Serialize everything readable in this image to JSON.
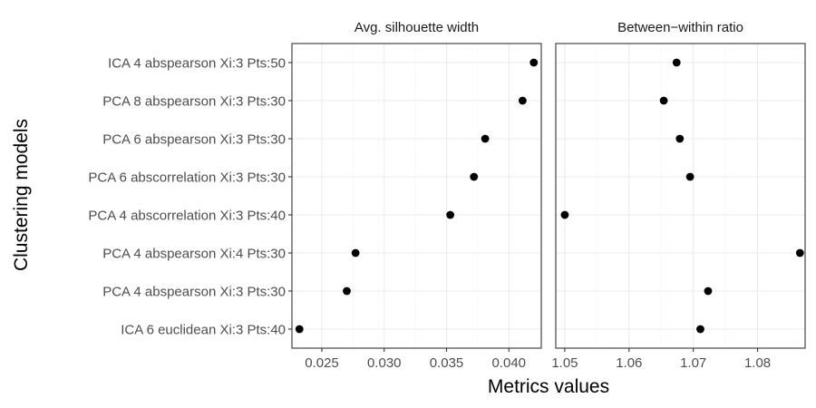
{
  "chart_data": {
    "type": "scatter",
    "ylabel": "Clustering models",
    "xlabel": "Metrics values",
    "categories": [
      "ICA 4 abspearson Xi:3 Pts:50",
      "PCA 8 abspearson Xi:3 Pts:30",
      "PCA 6 abspearson Xi:3 Pts:30",
      "PCA 6 abscorrelation Xi:3 Pts:30",
      "PCA 4 abscorrelation Xi:3 Pts:40",
      "PCA 4 abspearson Xi:4 Pts:30",
      "PCA 4 abspearson Xi:3 Pts:30",
      "ICA 6 euclidean Xi:3 Pts:40"
    ],
    "panels": [
      {
        "title": "Avg. silhouette width",
        "xlim": [
          0.0226,
          0.0426
        ],
        "ticks": [
          0.025,
          0.03,
          0.035,
          0.04
        ],
        "tick_labels": [
          "0.025",
          "0.030",
          "0.035",
          "0.040"
        ],
        "values": [
          0.042,
          0.0411,
          0.0381,
          0.0372,
          0.0353,
          0.0277,
          0.027,
          0.0232
        ]
      },
      {
        "title": "Between−within ratio",
        "xlim": [
          1.0486,
          1.0874
        ],
        "ticks": [
          1.05,
          1.06,
          1.07,
          1.08
        ],
        "tick_labels": [
          "1.05",
          "1.06",
          "1.07",
          "1.08"
        ],
        "values": [
          1.0674,
          1.0654,
          1.0679,
          1.0695,
          1.05,
          1.0866,
          1.0723,
          1.0711
        ]
      }
    ]
  }
}
